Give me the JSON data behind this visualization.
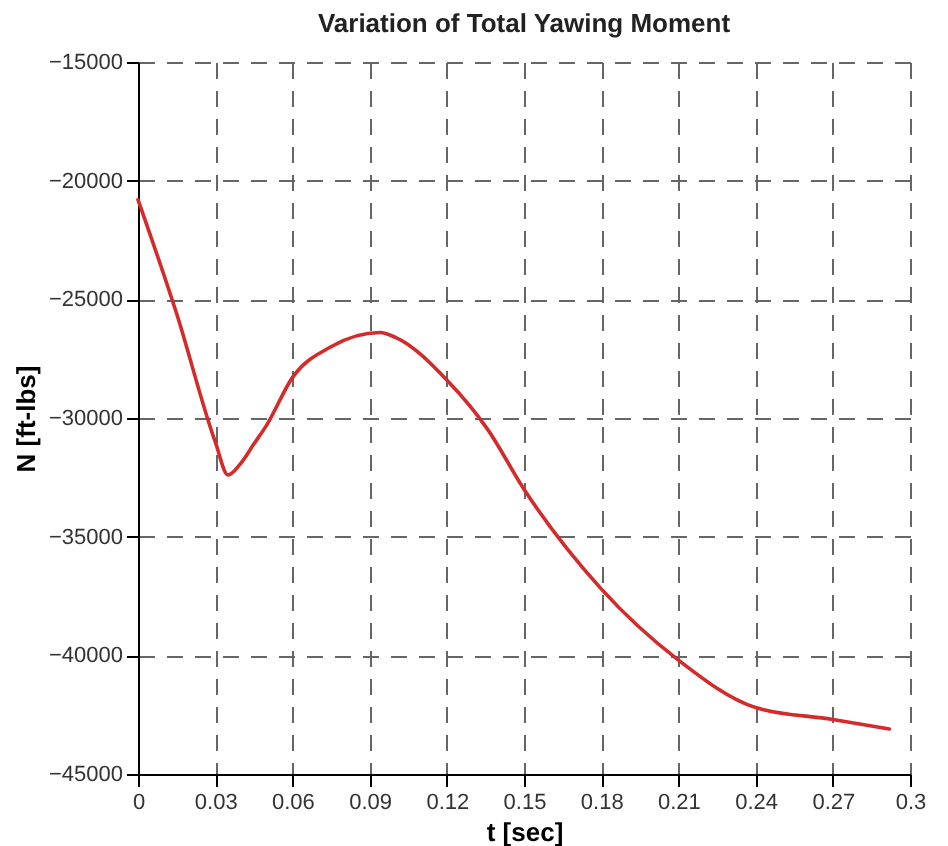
{
  "chart_data": {
    "type": "line",
    "title": "Variation of Total Yawing Moment",
    "xlabel": "t [sec]",
    "ylabel": "N [ft-lbs]",
    "x": [
      0,
      0.015,
      0.03,
      0.035,
      0.04,
      0.045,
      0.05,
      0.06,
      0.075,
      0.094,
      0.1,
      0.12,
      0.136,
      0.15,
      0.18,
      0.21,
      0.24,
      0.27,
      0.292
    ],
    "series": [
      {
        "color": "#d42a2a",
        "values": [
          -20800,
          -25600,
          -31000,
          -32400,
          -31900,
          -31100,
          -30300,
          -28300,
          -27000,
          -26400,
          -26600,
          -28400,
          -30500,
          -33000,
          -37200,
          -40200,
          -42200,
          -42700,
          -43100
        ]
      }
    ],
    "xlim": [
      0,
      0.3
    ],
    "xticks": [
      0,
      0.03,
      0.06,
      0.09,
      0.12,
      0.15,
      0.18,
      0.21,
      0.24,
      0.27,
      0.3
    ],
    "ylim": [
      -45000,
      -15000
    ],
    "yticks": [
      -45000,
      -40000,
      -35000,
      -30000,
      -25000,
      -20000,
      -15000
    ],
    "grid": true,
    "line_style": "solid"
  }
}
